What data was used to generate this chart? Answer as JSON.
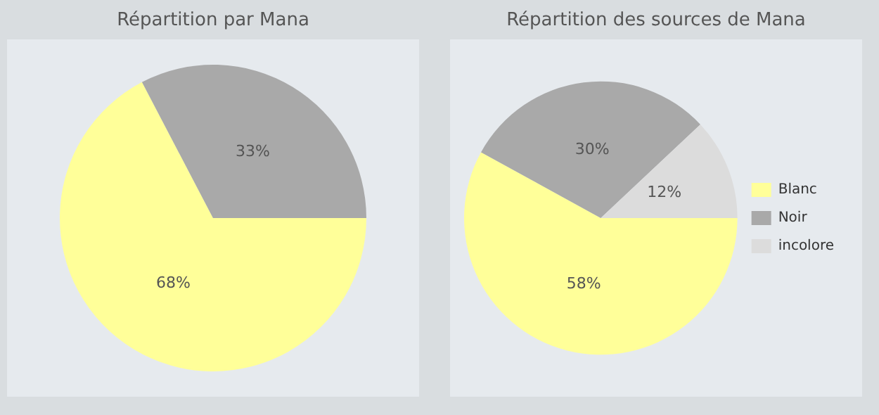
{
  "chart_data": [
    {
      "type": "pie",
      "title": "Répartition par Mana",
      "categories": [
        null,
        null
      ],
      "values": [
        68,
        33
      ],
      "colors": [
        "#ffff99",
        "#a9a9a9"
      ],
      "value_labels": [
        "68%",
        "33%"
      ],
      "legend": false
    },
    {
      "type": "pie",
      "title": "Répartition des sources de Mana",
      "categories": [
        "Blanc",
        "Noir",
        "incolore"
      ],
      "values": [
        58,
        30,
        12
      ],
      "colors": [
        "#ffff99",
        "#a9a9a9",
        "#dcdcdc"
      ],
      "value_labels": [
        "58%",
        "30%",
        "12%"
      ],
      "legend": "right"
    }
  ]
}
